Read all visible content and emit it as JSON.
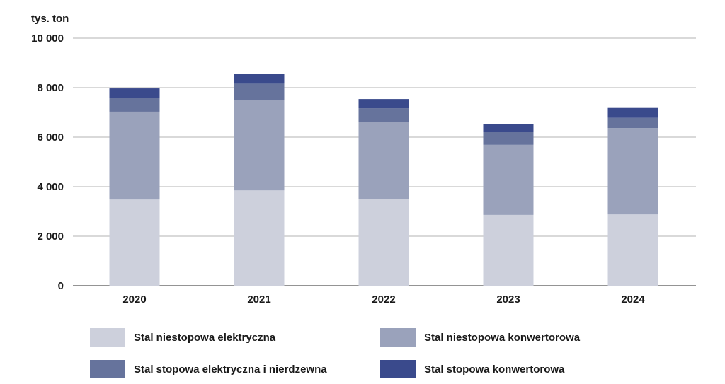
{
  "chart_data": {
    "type": "bar",
    "stacked": true,
    "unit": "tys. ton",
    "categories": [
      "2020",
      "2021",
      "2022",
      "2023",
      "2024"
    ],
    "y_ticks": [
      "0",
      "2 000",
      "4 000",
      "6 000",
      "8 000",
      "10 000"
    ],
    "ylim": [
      0,
      10000
    ],
    "grid": true,
    "legend_position": "bottom",
    "series": [
      {
        "name": "Stal niestopowa elektryczna",
        "color": "#cdd0dc",
        "values": [
          3480,
          3850,
          3510,
          2860,
          2880
        ]
      },
      {
        "name": "Stal niestopowa konwertorowa",
        "color": "#9aa2bb",
        "values": [
          3550,
          3660,
          3100,
          2830,
          3490
        ]
      },
      {
        "name": "Stal stopowa elektryczna i nierdzewna",
        "color": "#66739c",
        "values": [
          560,
          650,
          560,
          510,
          410
        ]
      },
      {
        "name": "Stal stopowa konwertorowa",
        "color": "#3a4a8c",
        "values": [
          380,
          400,
          370,
          330,
          400
        ]
      }
    ]
  }
}
